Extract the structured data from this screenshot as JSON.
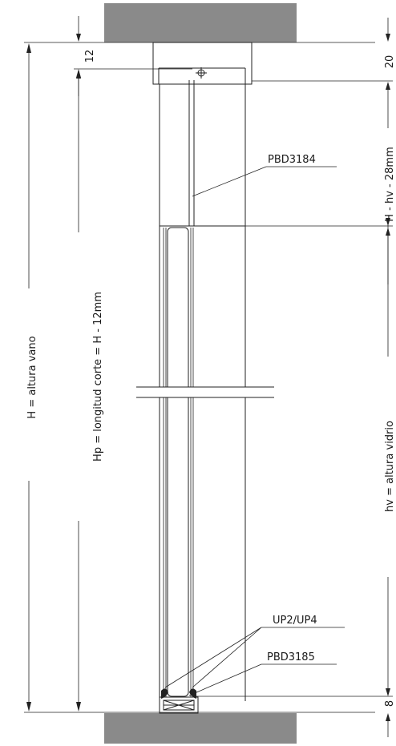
{
  "colors": {
    "concrete": "#8a8a8a",
    "glass": "#d2eee4",
    "line": "#222222",
    "background": "#ffffff"
  },
  "labels": {
    "dim_12": "12",
    "dim_20": "20",
    "dim_8": "8",
    "total_height": "H = altura vano",
    "cut_length": "Hp = longitud corte = H - 12mm",
    "upper_profile_height": "H - hv - 28mm",
    "glass_height": "hv = altura vidrio",
    "upper_profile_code": "PBD3184",
    "gasket_code": "UP2/UP4",
    "bottom_profile_code": "PBD3185"
  }
}
